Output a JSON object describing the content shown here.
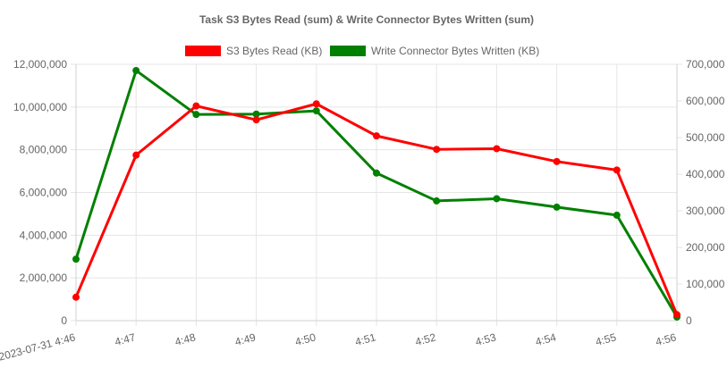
{
  "chart_data": {
    "type": "line",
    "title": "Task S3 Bytes Read (sum) & Write Connector Bytes Written (sum)",
    "x": [
      "2023-07-31 4:46",
      "4:47",
      "4:48",
      "4:49",
      "4:50",
      "4:51",
      "4:52",
      "4:53",
      "4:54",
      "4:55",
      "4:56"
    ],
    "series": [
      {
        "name": "S3 Bytes Read (KB)",
        "axis": "left",
        "color": "#ff0000",
        "values": [
          1100000,
          7750000,
          10050000,
          9400000,
          10150000,
          8650000,
          8020000,
          8050000,
          7450000,
          7050000,
          280000
        ]
      },
      {
        "name": "Write Connector Bytes Written (KB)",
        "axis": "right",
        "color": "#008000",
        "values": [
          168000,
          683000,
          563000,
          564000,
          573000,
          403000,
          327000,
          333000,
          310000,
          288000,
          10000
        ]
      }
    ],
    "y_left": {
      "range": [
        0,
        12000000
      ],
      "ticks": [
        "0",
        "2,000,000",
        "4,000,000",
        "6,000,000",
        "8,000,000",
        "10,000,000",
        "12,000,000"
      ]
    },
    "y_right": {
      "range": [
        0,
        700000
      ],
      "ticks": [
        "0",
        "100,000",
        "200,000",
        "300,000",
        "400,000",
        "500,000",
        "600,000",
        "700,000"
      ]
    },
    "legend_position": "top",
    "grid": true
  }
}
